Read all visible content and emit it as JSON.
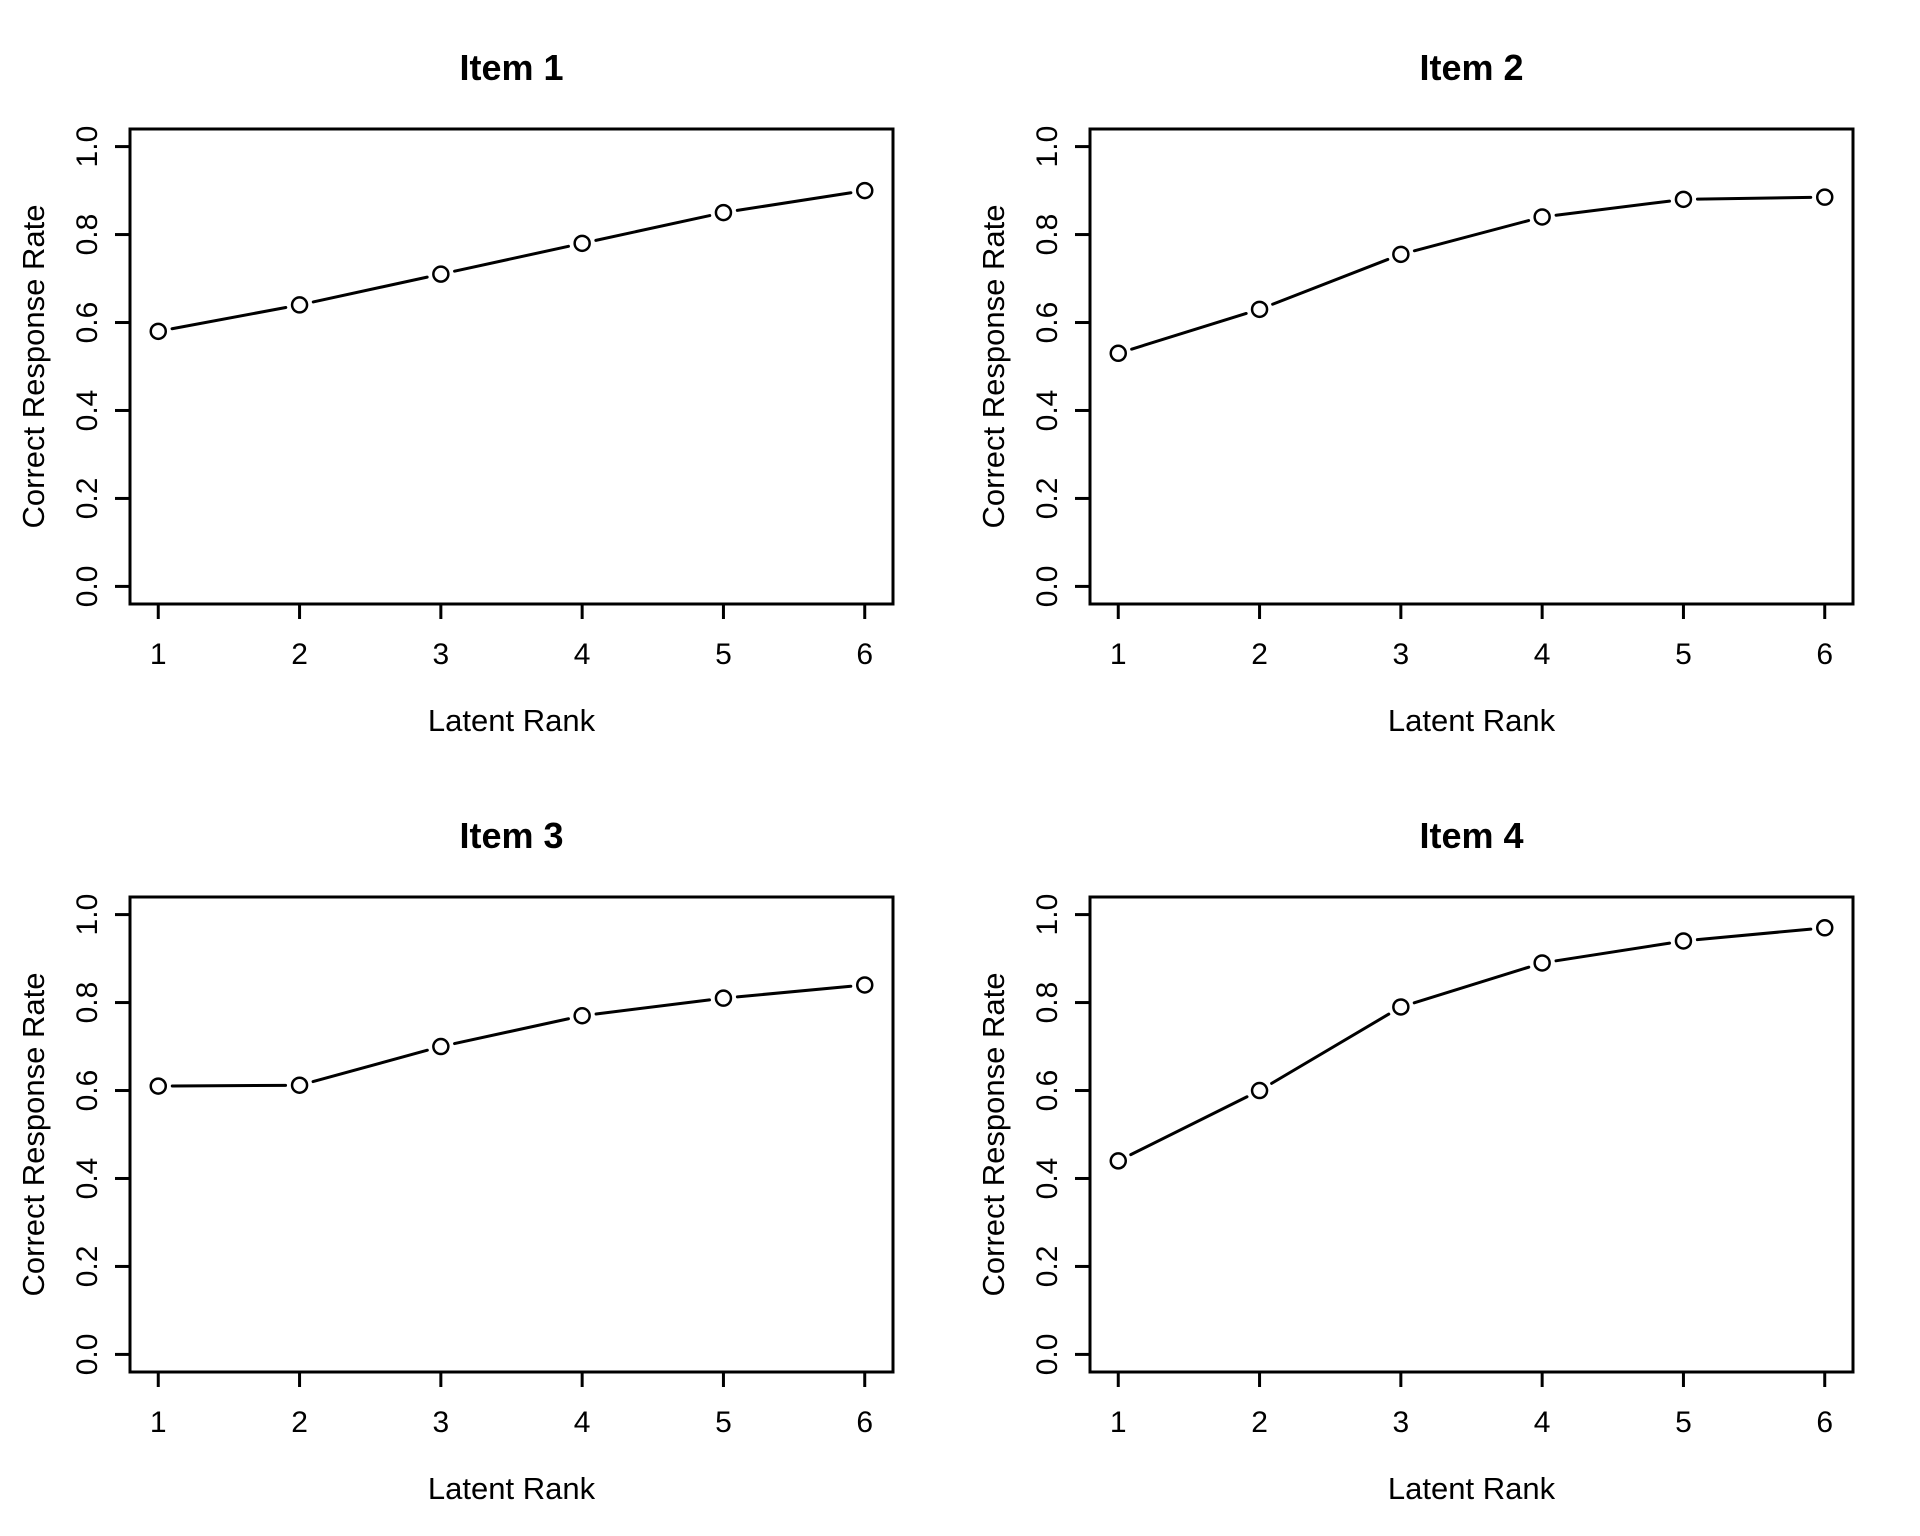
{
  "page": {
    "background": "#ffffff",
    "foreground": "#000000",
    "layout": "2x2-grid-of-plots"
  },
  "chart_data": [
    {
      "type": "line",
      "title": "Item 1",
      "xlabel": "Latent Rank",
      "ylabel": "Correct Response Rate",
      "x": [
        1,
        2,
        3,
        4,
        5,
        6
      ],
      "values": [
        0.58,
        0.64,
        0.71,
        0.78,
        0.85,
        0.9
      ],
      "xtick_labels": [
        "1",
        "2",
        "3",
        "4",
        "5",
        "6"
      ],
      "ytick_labels": [
        "0.0",
        "0.2",
        "0.4",
        "0.6",
        "0.8",
        "1.0"
      ],
      "yticks": [
        0.0,
        0.2,
        0.4,
        0.6,
        0.8,
        1.0
      ],
      "xlim": [
        1,
        6
      ],
      "ylim": [
        0.0,
        1.0
      ],
      "grid": false,
      "legend": "none",
      "marker": "open-circle",
      "line_style": "solid-with-marker-gaps",
      "color": "#000000"
    },
    {
      "type": "line",
      "title": "Item 2",
      "xlabel": "Latent Rank",
      "ylabel": "Correct Response Rate",
      "x": [
        1,
        2,
        3,
        4,
        5,
        6
      ],
      "values": [
        0.53,
        0.63,
        0.755,
        0.84,
        0.88,
        0.885
      ],
      "xtick_labels": [
        "1",
        "2",
        "3",
        "4",
        "5",
        "6"
      ],
      "ytick_labels": [
        "0.0",
        "0.2",
        "0.4",
        "0.6",
        "0.8",
        "1.0"
      ],
      "yticks": [
        0.0,
        0.2,
        0.4,
        0.6,
        0.8,
        1.0
      ],
      "xlim": [
        1,
        6
      ],
      "ylim": [
        0.0,
        1.0
      ],
      "grid": false,
      "legend": "none",
      "marker": "open-circle",
      "line_style": "solid-with-marker-gaps",
      "color": "#000000"
    },
    {
      "type": "line",
      "title": "Item 3",
      "xlabel": "Latent Rank",
      "ylabel": "Correct Response Rate",
      "x": [
        1,
        2,
        3,
        4,
        5,
        6
      ],
      "values": [
        0.61,
        0.612,
        0.7,
        0.77,
        0.81,
        0.84
      ],
      "xtick_labels": [
        "1",
        "2",
        "3",
        "4",
        "5",
        "6"
      ],
      "ytick_labels": [
        "0.0",
        "0.2",
        "0.4",
        "0.6",
        "0.8",
        "1.0"
      ],
      "yticks": [
        0.0,
        0.2,
        0.4,
        0.6,
        0.8,
        1.0
      ],
      "xlim": [
        1,
        6
      ],
      "ylim": [
        0.0,
        1.0
      ],
      "grid": false,
      "legend": "none",
      "marker": "open-circle",
      "line_style": "solid-with-marker-gaps",
      "color": "#000000"
    },
    {
      "type": "line",
      "title": "Item 4",
      "xlabel": "Latent Rank",
      "ylabel": "Correct Response Rate",
      "x": [
        1,
        2,
        3,
        4,
        5,
        6
      ],
      "values": [
        0.44,
        0.6,
        0.79,
        0.89,
        0.94,
        0.97
      ],
      "xtick_labels": [
        "1",
        "2",
        "3",
        "4",
        "5",
        "6"
      ],
      "ytick_labels": [
        "0.0",
        "0.2",
        "0.4",
        "0.6",
        "0.8",
        "1.0"
      ],
      "yticks": [
        0.0,
        0.2,
        0.4,
        0.6,
        0.8,
        1.0
      ],
      "xlim": [
        1,
        6
      ],
      "ylim": [
        0.0,
        1.0
      ],
      "grid": false,
      "legend": "none",
      "marker": "open-circle",
      "line_style": "solid-with-marker-gaps",
      "color": "#000000"
    }
  ]
}
